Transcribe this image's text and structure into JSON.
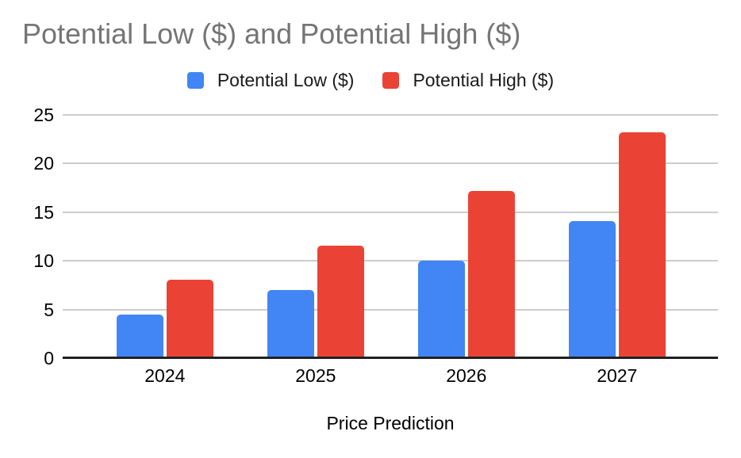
{
  "title": "Potential Low ($) and Potential High ($)",
  "x_axis_title": "Price Prediction",
  "chart_data": {
    "type": "bar",
    "title": "Potential Low ($) and Potential High ($)",
    "categories": [
      "2024",
      "2025",
      "2026",
      "2027"
    ],
    "series": [
      {
        "name": "Potential Low ($)",
        "color": "#4285F4",
        "values": [
          4.5,
          7,
          10,
          14.1
        ]
      },
      {
        "name": "Potential High ($)",
        "color": "#EA4335",
        "values": [
          8.1,
          11.6,
          17.2,
          23.2
        ]
      }
    ],
    "xlabel": "Price Prediction",
    "ylabel": "",
    "ylim": [
      0,
      25
    ],
    "yticks": [
      0,
      5,
      10,
      15,
      20,
      25
    ],
    "grid": true,
    "legend_position": "top",
    "colors": {
      "title_text": "#757575",
      "axis_text": "#000000",
      "gridline": "#cccccc",
      "baseline": "#212121",
      "background": "#ffffff"
    }
  }
}
